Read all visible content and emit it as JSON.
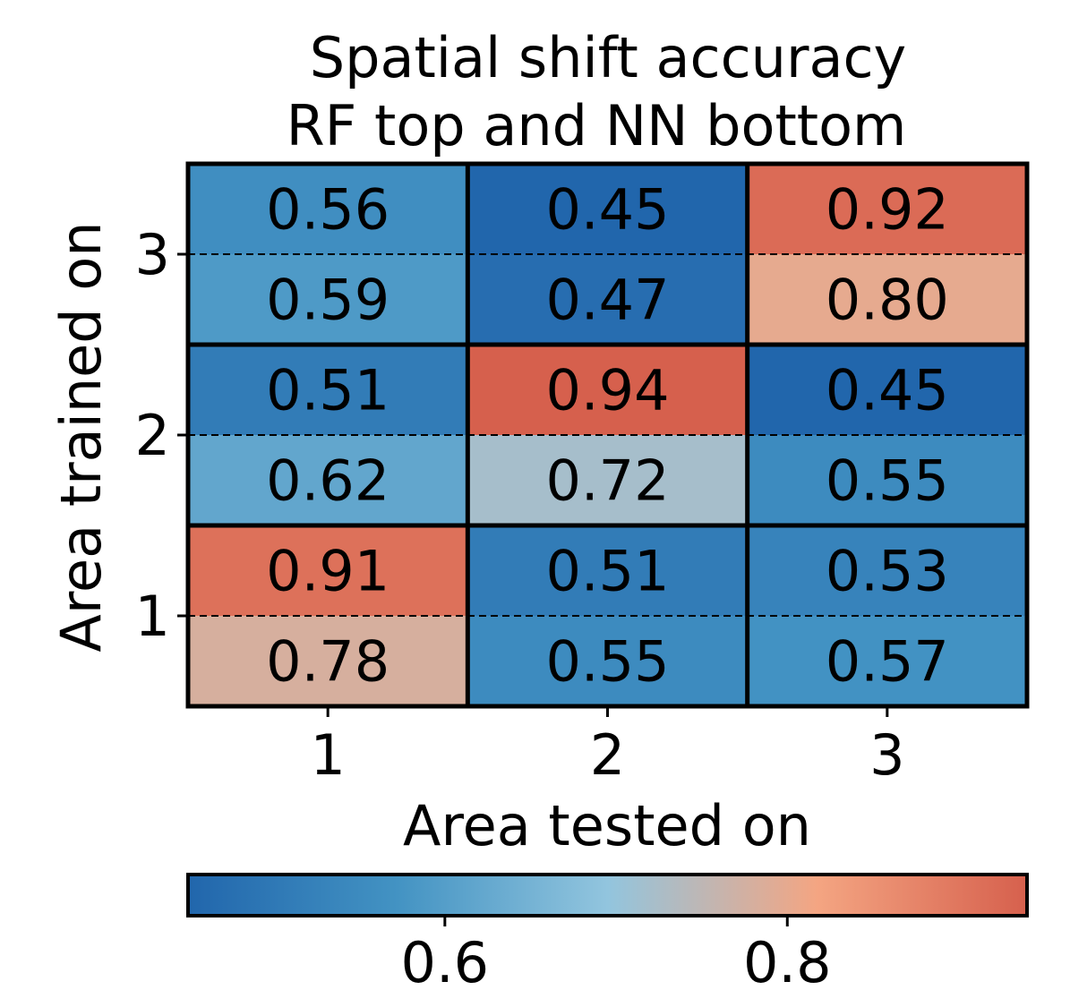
{
  "chart_data": {
    "type": "heatmap",
    "title": "Spatial shift accuracy",
    "subtitle": "RF top and NN bottom",
    "xlabel": "Area tested on",
    "ylabel": "Area trained on",
    "x_categories": [
      "1",
      "2",
      "3"
    ],
    "y_categories": [
      "1",
      "2",
      "3"
    ],
    "split_labels": {
      "top": "RF",
      "bottom": "NN"
    },
    "cells": [
      {
        "trained": "3",
        "tested": "1",
        "rf": 0.56,
        "nn": 0.59,
        "rf_label": "0.56",
        "nn_label": "0.59"
      },
      {
        "trained": "3",
        "tested": "2",
        "rf": 0.45,
        "nn": 0.47,
        "rf_label": "0.45",
        "nn_label": "0.47"
      },
      {
        "trained": "3",
        "tested": "3",
        "rf": 0.92,
        "nn": 0.8,
        "rf_label": "0.92",
        "nn_label": "0.80"
      },
      {
        "trained": "2",
        "tested": "1",
        "rf": 0.51,
        "nn": 0.62,
        "rf_label": "0.51",
        "nn_label": "0.62"
      },
      {
        "trained": "2",
        "tested": "2",
        "rf": 0.94,
        "nn": 0.72,
        "rf_label": "0.94",
        "nn_label": "0.72"
      },
      {
        "trained": "2",
        "tested": "3",
        "rf": 0.45,
        "nn": 0.55,
        "rf_label": "0.45",
        "nn_label": "0.55"
      },
      {
        "trained": "1",
        "tested": "1",
        "rf": 0.91,
        "nn": 0.78,
        "rf_label": "0.91",
        "nn_label": "0.78"
      },
      {
        "trained": "1",
        "tested": "2",
        "rf": 0.51,
        "nn": 0.55,
        "rf_label": "0.51",
        "nn_label": "0.55"
      },
      {
        "trained": "1",
        "tested": "3",
        "rf": 0.53,
        "nn": 0.57,
        "rf_label": "0.53",
        "nn_label": "0.57"
      }
    ],
    "colorbar": {
      "range": [
        0.45,
        0.94
      ],
      "ticks": [
        0.6,
        0.8
      ],
      "tick_labels": [
        "0.6",
        "0.8"
      ],
      "placement": "bottom",
      "colormap": [
        "#2166ac",
        "#4393c3",
        "#92c5de",
        "#f4a582",
        "#d6604d"
      ]
    },
    "grid": false
  }
}
